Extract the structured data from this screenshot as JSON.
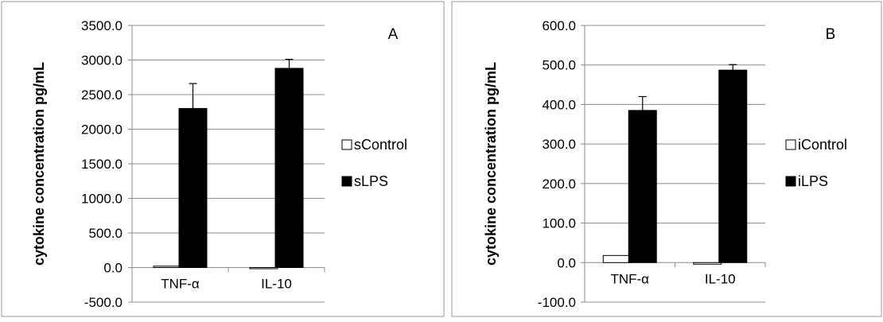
{
  "chart_data": [
    {
      "type": "bar",
      "panel_label": "A",
      "ylabel": "cytokine concentration pg/mL",
      "categories": [
        "TNF-α",
        "IL-10"
      ],
      "ylim": [
        -500,
        3500
      ],
      "yticks": [
        -500,
        0,
        500,
        1000,
        1500,
        2000,
        2500,
        3000,
        3500
      ],
      "ytick_labels": [
        "-500.0",
        "0.0",
        "500.0",
        "1000.0",
        "1500.0",
        "2000.0",
        "2500.0",
        "3000.0",
        "3500.0"
      ],
      "grid": true,
      "legend_position": "right",
      "series": [
        {
          "name": "sControl",
          "color": "#ffffff",
          "values": [
            20,
            -15
          ],
          "errors": [
            0,
            0
          ]
        },
        {
          "name": "sLPS",
          "color": "#000000",
          "values": [
            2300,
            2880
          ],
          "errors": [
            360,
            130
          ]
        }
      ]
    },
    {
      "type": "bar",
      "panel_label": "B",
      "ylabel": "cytokine concentration pg/mL",
      "categories": [
        "TNF-α",
        "IL-10"
      ],
      "ylim": [
        -100,
        600
      ],
      "yticks": [
        -100,
        0,
        100,
        200,
        300,
        400,
        500,
        600
      ],
      "ytick_labels": [
        "-100.0",
        "0.0",
        "100.0",
        "200.0",
        "300.0",
        "400.0",
        "500.0",
        "600.0"
      ],
      "grid": true,
      "legend_position": "right",
      "series": [
        {
          "name": "iControl",
          "color": "#ffffff",
          "values": [
            18,
            -4
          ],
          "errors": [
            0,
            0
          ]
        },
        {
          "name": "iLPS",
          "color": "#000000",
          "values": [
            385,
            487
          ],
          "errors": [
            35,
            14
          ]
        }
      ]
    }
  ]
}
